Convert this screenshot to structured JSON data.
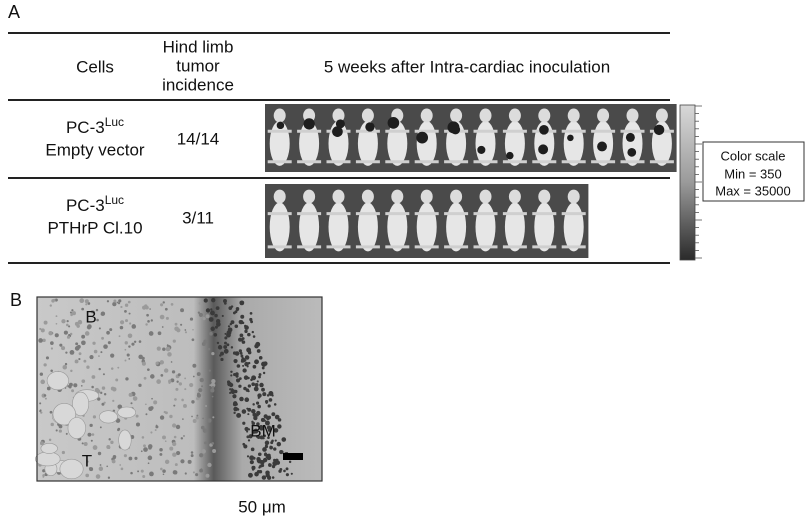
{
  "panel_a": {
    "label": "A",
    "table": {
      "header": {
        "cells": "Cells",
        "incidence": [
          "Hind limb",
          "tumor",
          "incidence"
        ],
        "imaging": "5 weeks after Intra-cardiac inoculation"
      },
      "rows": [
        {
          "cell_line": "PC-3",
          "superscript": "Luc",
          "construct": "Empty vector",
          "incidence": "14/14"
        },
        {
          "cell_line": "PC-3",
          "superscript": "Luc",
          "construct": "PTHrP Cl.10",
          "incidence": "3/11"
        }
      ]
    },
    "color_scale": {
      "title": "Color scale",
      "min": "Min = 350",
      "max": "Max = 35000"
    }
  },
  "panel_b": {
    "label": "B",
    "regions": [
      "B",
      "BM",
      "T"
    ],
    "scale_bar": "50 μm"
  }
}
